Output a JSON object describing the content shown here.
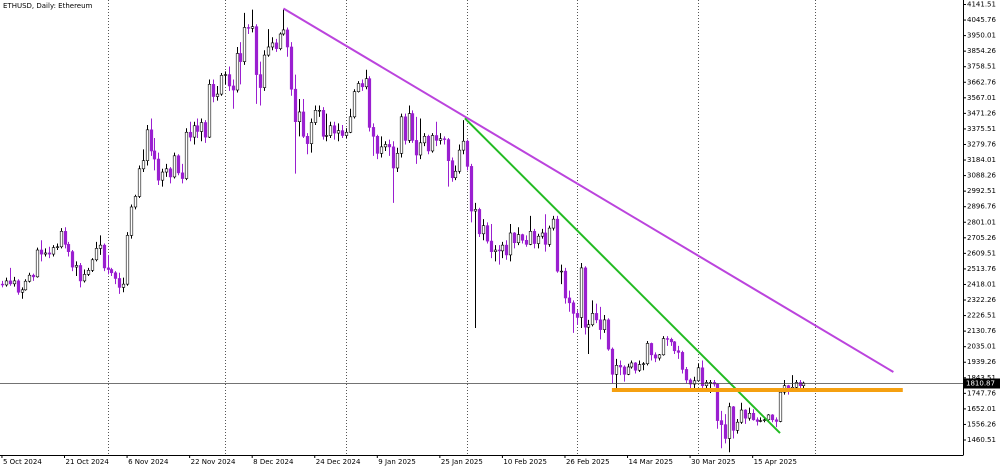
{
  "chart_data": {
    "type": "candlestick",
    "title": "ETHUSD, Daily: Ethereum",
    "up_color": "#ffffff",
    "down_color": "#9a1fd0",
    "outline_color": "#000000",
    "xlim": [
      -0.5,
      245.8
    ],
    "xticks": [
      {
        "value": 0,
        "label": "5 Oct 2024"
      },
      {
        "value": 16,
        "label": "21 Oct 2024"
      },
      {
        "value": 32,
        "label": "6 Nov 2024"
      },
      {
        "value": 48,
        "label": "22 Nov 2024"
      },
      {
        "value": 64,
        "label": "8 Dec 2024"
      },
      {
        "value": 80,
        "label": "24 Dec 2024"
      },
      {
        "value": 96,
        "label": "9 Jan 2025"
      },
      {
        "value": 112,
        "label": "25 Jan 2025"
      },
      {
        "value": 128,
        "label": "10 Feb 2025"
      },
      {
        "value": 144,
        "label": "26 Feb 2025"
      },
      {
        "value": 160,
        "label": "14 Mar 2025"
      },
      {
        "value": 176,
        "label": "30 Mar 2025"
      },
      {
        "value": 192,
        "label": "15 Apr 2025"
      }
    ],
    "xgrid": [
      27,
      57,
      88,
      119,
      147,
      178,
      208
    ],
    "ylim": [
      1368.2,
      4169.2
    ],
    "yticks": [
      4141.51,
      4045.76,
      3950.01,
      3854.26,
      3758.51,
      3662.76,
      3567.01,
      3471.26,
      3375.51,
      3279.76,
      3184.01,
      3088.26,
      2992.51,
      2896.76,
      2801.01,
      2705.26,
      2609.51,
      2513.76,
      2418.01,
      2322.26,
      2226.51,
      2130.76,
      2035.01,
      1939.26,
      1843.51,
      1747.76,
      1652.01,
      1556.26,
      1460.51
    ],
    "current_price": 1810.87,
    "trendlines": [
      {
        "color": "#bb44dd",
        "width": 2,
        "points": [
          [
            72,
            4117
          ],
          [
            228,
            1879
          ]
        ]
      },
      {
        "color": "#22bb22",
        "width": 2,
        "points": [
          [
            118.4,
            3441
          ],
          [
            199,
            1503
          ]
        ]
      },
      {
        "color": "#f5a010",
        "width": 4,
        "points": [
          [
            156,
            1768
          ],
          [
            230.4,
            1768
          ]
        ]
      }
    ],
    "ohlc": [
      [
        2420,
        2440,
        2400,
        2415
      ],
      [
        2415,
        2460,
        2405,
        2440
      ],
      [
        2440,
        2520,
        2410,
        2422
      ],
      [
        2422,
        2465,
        2405,
        2440
      ],
      [
        2440,
        2450,
        2355,
        2370
      ],
      [
        2370,
        2400,
        2330,
        2385
      ],
      [
        2385,
        2450,
        2380,
        2438
      ],
      [
        2438,
        2490,
        2430,
        2475
      ],
      [
        2475,
        2485,
        2440,
        2465
      ],
      [
        2465,
        2645,
        2460,
        2630
      ],
      [
        2630,
        2690,
        2560,
        2605
      ],
      [
        2605,
        2640,
        2590,
        2612
      ],
      [
        2612,
        2650,
        2580,
        2605
      ],
      [
        2605,
        2660,
        2590,
        2645
      ],
      [
        2645,
        2670,
        2630,
        2650
      ],
      [
        2650,
        2765,
        2640,
        2745
      ],
      [
        2745,
        2770,
        2640,
        2665
      ],
      [
        2665,
        2680,
        2590,
        2620
      ],
      [
        2620,
        2630,
        2500,
        2525
      ],
      [
        2525,
        2560,
        2470,
        2535
      ],
      [
        2535,
        2550,
        2400,
        2440
      ],
      [
        2440,
        2510,
        2430,
        2480
      ],
      [
        2480,
        2520,
        2470,
        2505
      ],
      [
        2505,
        2580,
        2495,
        2570
      ],
      [
        2570,
        2680,
        2560,
        2640
      ],
      [
        2640,
        2720,
        2600,
        2660
      ],
      [
        2660,
        2670,
        2500,
        2520
      ],
      [
        2520,
        2600,
        2480,
        2510
      ],
      [
        2510,
        2520,
        2470,
        2490
      ],
      [
        2490,
        2500,
        2420,
        2455
      ],
      [
        2455,
        2490,
        2360,
        2400
      ],
      [
        2400,
        2460,
        2370,
        2420
      ],
      [
        2420,
        2740,
        2410,
        2720
      ],
      [
        2720,
        2910,
        2700,
        2895
      ],
      [
        2895,
        2970,
        2880,
        2960
      ],
      [
        2960,
        3150,
        2950,
        3130
      ],
      [
        3130,
        3250,
        3110,
        3180
      ],
      [
        3180,
        3400,
        3150,
        3370
      ],
      [
        3370,
        3440,
        3210,
        3240
      ],
      [
        3240,
        3320,
        3120,
        3190
      ],
      [
        3190,
        3230,
        3030,
        3060
      ],
      [
        3060,
        3130,
        3020,
        3110
      ],
      [
        3110,
        3160,
        3080,
        3130
      ],
      [
        3130,
        3140,
        3040,
        3080
      ],
      [
        3080,
        3230,
        3070,
        3210
      ],
      [
        3210,
        3220,
        3090,
        3105
      ],
      [
        3105,
        3160,
        3040,
        3070
      ],
      [
        3070,
        3380,
        3060,
        3355
      ],
      [
        3355,
        3420,
        3300,
        3325
      ],
      [
        3325,
        3420,
        3280,
        3395
      ],
      [
        3395,
        3440,
        3320,
        3360
      ],
      [
        3360,
        3440,
        3300,
        3415
      ],
      [
        3415,
        3430,
        3290,
        3325
      ],
      [
        3325,
        3680,
        3320,
        3650
      ],
      [
        3650,
        3680,
        3540,
        3575
      ],
      [
        3575,
        3640,
        3550,
        3590
      ],
      [
        3590,
        3720,
        3580,
        3705
      ],
      [
        3705,
        3730,
        3650,
        3710
      ],
      [
        3710,
        3760,
        3610,
        3640
      ],
      [
        3640,
        3680,
        3500,
        3615
      ],
      [
        3615,
        3880,
        3600,
        3840
      ],
      [
        3840,
        3910,
        3650,
        3790
      ],
      [
        3790,
        4090,
        3770,
        4000
      ],
      [
        4000,
        4020,
        3960,
        3995
      ],
      [
        3995,
        4110,
        3970,
        4005
      ],
      [
        4005,
        4020,
        3530,
        3710
      ],
      [
        3710,
        3790,
        3520,
        3630
      ],
      [
        3630,
        3860,
        3610,
        3830
      ],
      [
        3830,
        3990,
        3820,
        3880
      ],
      [
        3880,
        3940,
        3860,
        3905
      ],
      [
        3905,
        3930,
        3850,
        3870
      ],
      [
        3870,
        3970,
        3860,
        3960
      ],
      [
        3960,
        4110,
        3950,
        3985
      ],
      [
        3985,
        4000,
        3820,
        3880
      ],
      [
        3880,
        3910,
        3580,
        3620
      ],
      [
        3620,
        3710,
        3100,
        3420
      ],
      [
        3420,
        3560,
        3330,
        3480
      ],
      [
        3480,
        3560,
        3320,
        3330
      ],
      [
        3330,
        3350,
        3220,
        3285
      ],
      [
        3285,
        3440,
        3230,
        3415
      ],
      [
        3415,
        3520,
        3400,
        3490
      ],
      [
        3490,
        3520,
        3450,
        3490
      ],
      [
        3490,
        3510,
        3310,
        3330
      ],
      [
        3330,
        3470,
        3300,
        3335
      ],
      [
        3335,
        3420,
        3320,
        3395
      ],
      [
        3395,
        3420,
        3310,
        3350
      ],
      [
        3350,
        3410,
        3300,
        3365
      ],
      [
        3365,
        3400,
        3320,
        3335
      ],
      [
        3335,
        3380,
        3320,
        3355
      ],
      [
        3355,
        3500,
        3350,
        3450
      ],
      [
        3450,
        3620,
        3440,
        3605
      ],
      [
        3605,
        3670,
        3600,
        3655
      ],
      [
        3655,
        3680,
        3610,
        3635
      ],
      [
        3635,
        3740,
        3620,
        3685
      ],
      [
        3685,
        3700,
        3360,
        3385
      ],
      [
        3385,
        3410,
        3210,
        3330
      ],
      [
        3330,
        3340,
        3190,
        3225
      ],
      [
        3225,
        3330,
        3200,
        3265
      ],
      [
        3265,
        3300,
        3240,
        3280
      ],
      [
        3280,
        3310,
        3210,
        3265
      ],
      [
        3265,
        3300,
        2920,
        3135
      ],
      [
        3135,
        3260,
        3110,
        3225
      ],
      [
        3225,
        3470,
        3200,
        3450
      ],
      [
        3450,
        3470,
        3280,
        3305
      ],
      [
        3305,
        3520,
        3290,
        3470
      ],
      [
        3470,
        3490,
        3290,
        3305
      ],
      [
        3305,
        3450,
        3160,
        3215
      ],
      [
        3215,
        3440,
        3190,
        3290
      ],
      [
        3290,
        3350,
        3270,
        3330
      ],
      [
        3330,
        3340,
        3220,
        3240
      ],
      [
        3240,
        3350,
        3230,
        3335
      ],
      [
        3335,
        3420,
        3270,
        3305
      ],
      [
        3305,
        3350,
        3280,
        3315
      ],
      [
        3315,
        3330,
        3280,
        3310
      ],
      [
        3310,
        3320,
        3020,
        3180
      ],
      [
        3180,
        3200,
        3050,
        3075
      ],
      [
        3075,
        3150,
        3060,
        3115
      ],
      [
        3115,
        3280,
        3100,
        3245
      ],
      [
        3245,
        3430,
        3220,
        3300
      ],
      [
        3300,
        3310,
        3120,
        3145
      ],
      [
        3145,
        3160,
        2800,
        2870
      ],
      [
        2870,
        2920,
        2150,
        2880
      ],
      [
        2880,
        2890,
        2710,
        2730
      ],
      [
        2730,
        2820,
        2690,
        2780
      ],
      [
        2780,
        2800,
        2670,
        2685
      ],
      [
        2685,
        2790,
        2580,
        2620
      ],
      [
        2620,
        2660,
        2560,
        2630
      ],
      [
        2630,
        2660,
        2540,
        2625
      ],
      [
        2625,
        2680,
        2580,
        2660
      ],
      [
        2660,
        2690,
        2570,
        2600
      ],
      [
        2600,
        2790,
        2560,
        2735
      ],
      [
        2735,
        2740,
        2640,
        2675
      ],
      [
        2675,
        2770,
        2660,
        2725
      ],
      [
        2725,
        2730,
        2670,
        2690
      ],
      [
        2690,
        2720,
        2650,
        2665
      ],
      [
        2665,
        2840,
        2660,
        2745
      ],
      [
        2745,
        2760,
        2640,
        2670
      ],
      [
        2670,
        2730,
        2640,
        2715
      ],
      [
        2715,
        2760,
        2700,
        2735
      ],
      [
        2735,
        2850,
        2620,
        2665
      ],
      [
        2665,
        2780,
        2650,
        2765
      ],
      [
        2765,
        2840,
        2750,
        2820
      ],
      [
        2820,
        2840,
        2490,
        2500
      ],
      [
        2500,
        2540,
        2420,
        2500
      ],
      [
        2500,
        2520,
        2300,
        2335
      ],
      [
        2335,
        2380,
        2250,
        2305
      ],
      [
        2305,
        2320,
        2120,
        2240
      ],
      [
        2240,
        2260,
        2170,
        2215
      ],
      [
        2215,
        2550,
        2150,
        2520
      ],
      [
        2520,
        2530,
        2110,
        2155
      ],
      [
        2155,
        2200,
        1990,
        2170
      ],
      [
        2170,
        2320,
        2160,
        2240
      ],
      [
        2240,
        2300,
        2180,
        2200
      ],
      [
        2200,
        2280,
        2080,
        2140
      ],
      [
        2140,
        2230,
        2120,
        2200
      ],
      [
        2200,
        2210,
        2010,
        2020
      ],
      [
        2020,
        2030,
        1810,
        1865
      ],
      [
        1865,
        1960,
        1760,
        1920
      ],
      [
        1920,
        1950,
        1860,
        1910
      ],
      [
        1910,
        1920,
        1820,
        1865
      ],
      [
        1865,
        1930,
        1860,
        1910
      ],
      [
        1910,
        1950,
        1900,
        1935
      ],
      [
        1935,
        1940,
        1870,
        1890
      ],
      [
        1890,
        1950,
        1880,
        1925
      ],
      [
        1925,
        1940,
        1890,
        1930
      ],
      [
        1930,
        2070,
        1920,
        2055
      ],
      [
        2055,
        2060,
        1950,
        1985
      ],
      [
        1985,
        2000,
        1940,
        1965
      ],
      [
        1965,
        1990,
        1950,
        1985
      ],
      [
        1985,
        2100,
        1980,
        2085
      ],
      [
        2085,
        2100,
        2040,
        2080
      ],
      [
        2080,
        2090,
        2040,
        2065
      ],
      [
        2065,
        2070,
        1990,
        2010
      ],
      [
        2010,
        2040,
        1960,
        2000
      ],
      [
        2000,
        2010,
        1870,
        1895
      ],
      [
        1895,
        1910,
        1810,
        1830
      ],
      [
        1830,
        1840,
        1780,
        1805
      ],
      [
        1805,
        1850,
        1770,
        1825
      ],
      [
        1825,
        1930,
        1820,
        1905
      ],
      [
        1905,
        1950,
        1780,
        1795
      ],
      [
        1795,
        1830,
        1760,
        1815
      ],
      [
        1815,
        1830,
        1750,
        1815
      ],
      [
        1815,
        1830,
        1790,
        1805
      ],
      [
        1805,
        1810,
        1530,
        1580
      ],
      [
        1580,
        1640,
        1410,
        1555
      ],
      [
        1555,
        1620,
        1440,
        1470
      ],
      [
        1470,
        1690,
        1385,
        1665
      ],
      [
        1665,
        1670,
        1470,
        1520
      ],
      [
        1520,
        1590,
        1500,
        1570
      ],
      [
        1570,
        1690,
        1560,
        1645
      ],
      [
        1645,
        1650,
        1560,
        1595
      ],
      [
        1595,
        1660,
        1580,
        1625
      ],
      [
        1625,
        1650,
        1580,
        1585
      ],
      [
        1585,
        1600,
        1550,
        1575
      ],
      [
        1575,
        1600,
        1570,
        1580
      ],
      [
        1580,
        1600,
        1570,
        1585
      ],
      [
        1585,
        1620,
        1580,
        1615
      ],
      [
        1615,
        1620,
        1570,
        1585
      ],
      [
        1585,
        1600,
        1540,
        1575
      ],
      [
        1575,
        1780,
        1570,
        1755
      ],
      [
        1755,
        1830,
        1740,
        1795
      ],
      [
        1795,
        1800,
        1740,
        1770
      ],
      [
        1770,
        1860,
        1760,
        1785
      ],
      [
        1785,
        1830,
        1780,
        1815
      ],
      [
        1815,
        1830,
        1770,
        1795
      ],
      [
        1795,
        1820,
        1780,
        1810.87
      ]
    ]
  }
}
